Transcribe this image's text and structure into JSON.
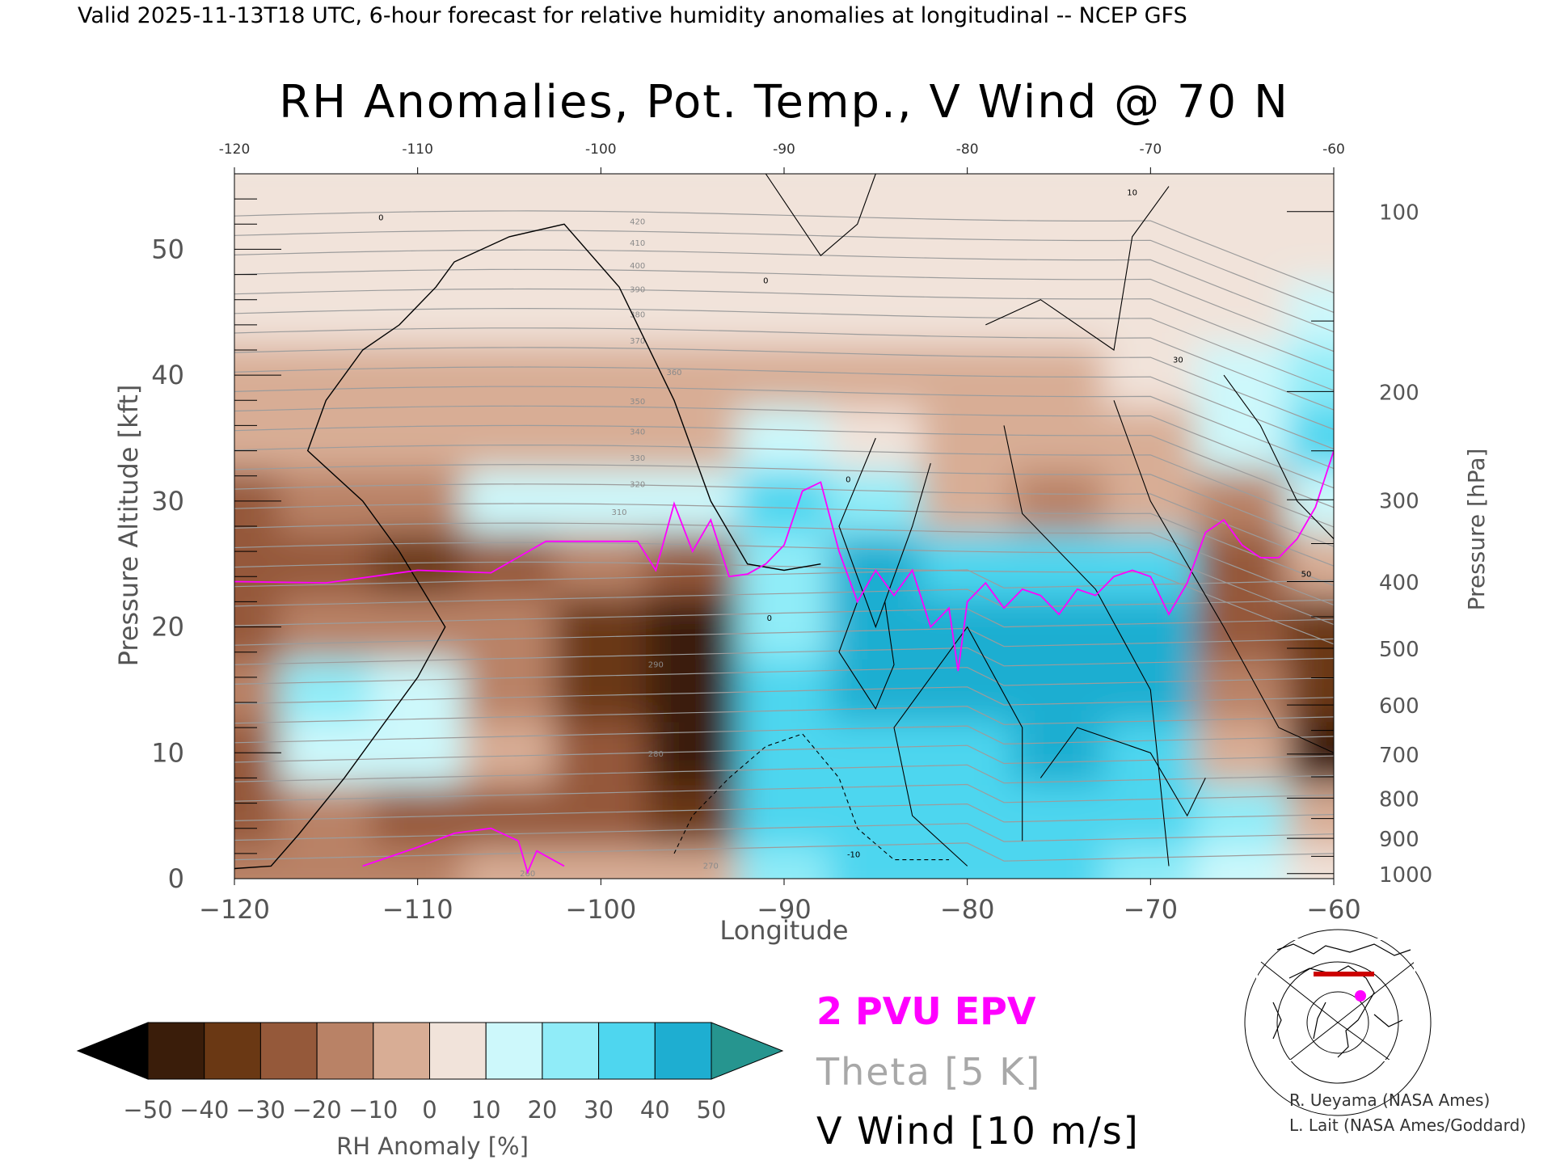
{
  "header": "Valid 2025-11-13T18 UTC, 6-hour forecast for relative humidity anomalies at longitudinal -- NCEP GFS",
  "chart_data": {
    "type": "heatmap",
    "title": "RH Anomalies, Pot. Temp., V Wind @ 70 N",
    "xlabel": "Longitude",
    "ylabel_left": "Pressure Altitude [kft]",
    "ylabel_right": "Pressure [hPa]",
    "xlim": [
      -120,
      -60
    ],
    "ylim_kft": [
      0,
      56
    ],
    "x_ticks": [
      -120,
      -110,
      -100,
      -90,
      -80,
      -70,
      -60
    ],
    "x_tick_labels": [
      "−120",
      "−110",
      "−100",
      "−90",
      "−80",
      "−70",
      "−60"
    ],
    "top_tick_labels": [
      "-120",
      "-110",
      "-100",
      "-90",
      "-80",
      "-70",
      "-60"
    ],
    "y_ticks_kft": [
      0,
      10,
      20,
      30,
      40,
      50
    ],
    "pressure_ticks": [
      {
        "hpa": 100,
        "kft": 53.0
      },
      {
        "hpa": 200,
        "kft": 38.7
      },
      {
        "hpa": 300,
        "kft": 30.1
      },
      {
        "hpa": 400,
        "kft": 23.6
      },
      {
        "hpa": 500,
        "kft": 18.3
      },
      {
        "hpa": 600,
        "kft": 13.8
      },
      {
        "hpa": 700,
        "kft": 9.9
      },
      {
        "hpa": 800,
        "kft": 6.4
      },
      {
        "hpa": 900,
        "kft": 3.2
      },
      {
        "hpa": 1000,
        "kft": 0.4
      }
    ],
    "colorbar": {
      "label": "RH Anomaly [%]",
      "ticks": [
        -50,
        -40,
        -30,
        -20,
        -10,
        0,
        10,
        20,
        30,
        40,
        50
      ],
      "tick_labels": [
        "−50",
        "−40",
        "−30",
        "−20",
        "−10",
        "0",
        "10",
        "20",
        "30",
        "40",
        "50"
      ],
      "colors": [
        "#000000",
        "#3a1d0a",
        "#6a3814",
        "#95593a",
        "#b98266",
        "#d8ad95",
        "#f1e3da",
        "#cdf8fb",
        "#90ecf8",
        "#4ed6ef",
        "#1eaed1",
        "#0f87a9",
        "#26958f"
      ]
    },
    "rh_cells": {
      "lon": [
        -120,
        -115,
        -110,
        -105,
        -100,
        -95,
        -90,
        -85,
        -80,
        -75,
        -70,
        -65,
        -60
      ],
      "kft": [
        0,
        5,
        10,
        15,
        20,
        25,
        30,
        35,
        40,
        45,
        50,
        55
      ],
      "values": [
        [
          -15,
          -20,
          -15,
          -5,
          -5,
          -10,
          20,
          35,
          35,
          30,
          25,
          10,
          5
        ],
        [
          -25,
          -20,
          -30,
          -30,
          -25,
          -35,
          30,
          35,
          30,
          30,
          35,
          20,
          -5
        ],
        [
          -25,
          15,
          10,
          -10,
          -25,
          -45,
          30,
          30,
          35,
          40,
          35,
          -10,
          -45
        ],
        [
          -20,
          20,
          10,
          -15,
          -40,
          -45,
          30,
          45,
          40,
          45,
          40,
          -15,
          -40
        ],
        [
          -25,
          -15,
          -20,
          -20,
          -40,
          -45,
          25,
          40,
          40,
          45,
          40,
          -25,
          -35
        ],
        [
          -30,
          -30,
          -35,
          -25,
          -20,
          -25,
          25,
          40,
          35,
          35,
          30,
          -25,
          -10
        ],
        [
          -25,
          -20,
          -15,
          10,
          10,
          15,
          30,
          25,
          -5,
          -15,
          -5,
          -20,
          15
        ],
        [
          -8,
          -5,
          -5,
          -3,
          -3,
          -5,
          10,
          5,
          -10,
          -10,
          -8,
          10,
          30
        ],
        [
          -5,
          -5,
          -5,
          -5,
          -5,
          -5,
          -8,
          -8,
          -5,
          -3,
          0,
          10,
          20
        ],
        [
          0,
          0,
          0,
          0,
          0,
          0,
          0,
          0,
          0,
          0,
          0,
          5,
          10
        ],
        [
          0,
          0,
          0,
          0,
          0,
          0,
          0,
          0,
          0,
          0,
          0,
          0,
          5
        ],
        [
          0,
          0,
          0,
          0,
          0,
          0,
          0,
          0,
          0,
          0,
          0,
          0,
          0
        ]
      ]
    },
    "series": [
      {
        "name": "2 PVU EPV",
        "color": "#ff00ff",
        "lon": [
          -120,
          -115,
          -110,
          -106,
          -103,
          -98,
          -97,
          -96,
          -95,
          -94,
          -93,
          -92,
          -91,
          -90,
          -89,
          -88,
          -87,
          -86,
          -85,
          -84,
          -83,
          -82,
          -81,
          -80.5,
          -80,
          -79,
          -78,
          -77,
          -76,
          -75,
          -74,
          -73,
          -72,
          -71,
          -70,
          -69,
          -68,
          -67,
          -66,
          -65,
          -64,
          -63,
          -62,
          -61,
          -60
        ],
        "kft": [
          23.6,
          23.5,
          24.5,
          24.3,
          26.8,
          26.8,
          24.5,
          29.8,
          26.0,
          28.5,
          24.0,
          24.2,
          25.0,
          26.5,
          30.8,
          31.5,
          26.0,
          22.0,
          24.5,
          22.5,
          24.5,
          20.0,
          21.5,
          16.5,
          22.0,
          23.5,
          21.5,
          23.0,
          22.5,
          21.0,
          23.0,
          22.5,
          24.0,
          24.5,
          24.0,
          21.0,
          23.5,
          27.5,
          28.5,
          26.5,
          25.5,
          25.5,
          27.0,
          29.5,
          34.0
        ]
      },
      {
        "name": "2 PVU EPV near surface",
        "color": "#ff00ff",
        "lon": [
          -113,
          -110,
          -108,
          -106,
          -104.5,
          -104,
          -103.5,
          -102
        ],
        "kft": [
          1.0,
          2.5,
          3.6,
          4.0,
          3.0,
          0.5,
          2.2,
          1.0
        ]
      },
      {
        "name": "V Wind 0 contour",
        "color": "#000000",
        "lon": [
          -120,
          -118,
          -116.5,
          -114,
          -112,
          -110,
          -108.5,
          -111,
          -113,
          -116,
          -115,
          -113,
          -111,
          -109,
          -108,
          -105,
          -102,
          -99,
          -96,
          -94,
          -92,
          -90,
          -88
        ],
        "kft": [
          0.8,
          1.0,
          3.5,
          8.0,
          12.0,
          16.0,
          20.0,
          26.0,
          30.0,
          34.0,
          38.0,
          42.0,
          44.0,
          47.0,
          49.0,
          51.0,
          52.0,
          47.0,
          38.0,
          30.0,
          25.0,
          24.5,
          25.0
        ]
      }
    ],
    "contour_labels": [
      "0",
      "10",
      "30",
      "50",
      "-10"
    ],
    "theta_labels": [
      "420",
      "410",
      "400",
      "390",
      "380",
      "370",
      "360",
      "350",
      "340",
      "330",
      "320",
      "310",
      "290",
      "280",
      "270",
      "260"
    ],
    "legend": {
      "epv": "2 PVU EPV",
      "theta": "Theta [5 K]",
      "vwind": "V Wind [10 m/s]"
    },
    "credits": [
      "R. Ueyama (NASA Ames)",
      "L. Lait (NASA Ames/Goddard)"
    ]
  }
}
